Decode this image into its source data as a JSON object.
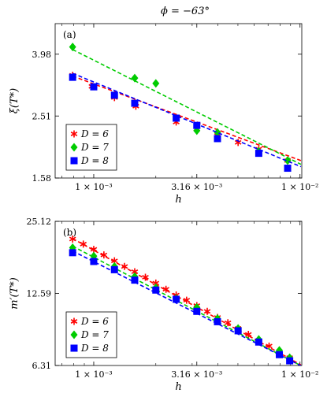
{
  "title": "ϕ = −63°",
  "chart_data": [
    {
      "type": "scatter",
      "panel_label": "(a)",
      "xlabel": "h",
      "ylabel": "ξ(T*)",
      "xscale": "log",
      "yscale": "log",
      "xlim": [
        0.00065,
        0.0102
      ],
      "ylim": [
        1.58,
        5.0
      ],
      "x_ticks": [
        {
          "value": 0.001,
          "label": "1 × 10⁻³"
        },
        {
          "value": 0.00316,
          "label": "3.16 × 10⁻³"
        },
        {
          "value": 0.01,
          "label": "1 × 10⁻²"
        }
      ],
      "y_ticks": [
        {
          "value": 1.58,
          "label": "1.58"
        },
        {
          "value": 2.51,
          "label": "2.51"
        },
        {
          "value": 3.98,
          "label": "3.98"
        }
      ],
      "legend_position": "bottom-left",
      "series": [
        {
          "name": "D = 6",
          "color": "#ff0000",
          "marker": "star",
          "x": [
            0.00079,
            0.00098,
            0.00126,
            0.0016,
            0.00251,
            0.00316,
            0.00398,
            0.00501,
            0.00631,
            0.00871
          ],
          "y": [
            3.4,
            3.13,
            2.88,
            2.7,
            2.4,
            2.28,
            2.17,
            2.06,
            1.96,
            1.8
          ],
          "fit": {
            "x": [
              0.00079,
              0.0101
            ],
            "y": [
              3.38,
              1.8
            ]
          }
        },
        {
          "name": "D = 7",
          "color": "#00cc00",
          "marker": "diamond",
          "x": [
            0.00079,
            0.00158,
            0.002,
            0.00316,
            0.00398,
            0.00631,
            0.00871
          ],
          "y": [
            4.2,
            3.33,
            3.2,
            2.25,
            2.22,
            1.93,
            1.8
          ],
          "fit": {
            "x": [
              0.00079,
              0.0101
            ],
            "y": [
              4.12,
              1.75
            ]
          }
        },
        {
          "name": "D = 8",
          "color": "#0000ff",
          "marker": "square",
          "x": [
            0.00079,
            0.001,
            0.00126,
            0.00158,
            0.00251,
            0.00316,
            0.00398,
            0.00631,
            0.00871
          ],
          "y": [
            3.35,
            3.12,
            2.93,
            2.76,
            2.47,
            2.34,
            2.12,
            1.9,
            1.7
          ],
          "fit": {
            "x": [
              0.00079,
              0.0101
            ],
            "y": [
              3.45,
              1.72
            ]
          }
        }
      ]
    },
    {
      "type": "scatter",
      "panel_label": "(b)",
      "xlabel": "h",
      "ylabel": "m′(T*)",
      "xscale": "log",
      "yscale": "log",
      "xlim": [
        0.00065,
        0.0102
      ],
      "ylim": [
        6.31,
        25.12
      ],
      "x_ticks": [
        {
          "value": 0.001,
          "label": "1 × 10⁻³"
        },
        {
          "value": 0.00316,
          "label": "3.16 × 10⁻³"
        },
        {
          "value": 0.01,
          "label": "1 × 10⁻²"
        }
      ],
      "y_ticks": [
        {
          "value": 6.31,
          "label": "6.31"
        },
        {
          "value": 12.59,
          "label": "12.59"
        },
        {
          "value": 25.12,
          "label": "25.12"
        }
      ],
      "legend_position": "bottom-left",
      "series": [
        {
          "name": "D = 6",
          "color": "#ff0000",
          "marker": "star",
          "x": [
            0.00079,
            0.00089,
            0.001,
            0.00112,
            0.00126,
            0.00141,
            0.00158,
            0.00178,
            0.002,
            0.00224,
            0.00251,
            0.00282,
            0.00316,
            0.00355,
            0.00398,
            0.00447,
            0.00501,
            0.00562,
            0.00631,
            0.00708,
            0.00794,
            0.00891
          ],
          "y": [
            21.2,
            20.2,
            19.2,
            18.2,
            17.2,
            16.3,
            15.5,
            14.7,
            13.9,
            13.1,
            12.4,
            11.8,
            11.2,
            10.6,
            10.0,
            9.5,
            9.0,
            8.5,
            8.0,
            7.6,
            7.2,
            6.8
          ],
          "fit": {
            "x": [
              0.00079,
              0.0101
            ],
            "y": [
              21.3,
              6.35
            ]
          }
        },
        {
          "name": "D = 7",
          "color": "#00cc00",
          "marker": "diamond",
          "x": [
            0.00079,
            0.001,
            0.00126,
            0.00158,
            0.002,
            0.00251,
            0.00316,
            0.00398,
            0.00501,
            0.00631,
            0.00794,
            0.00891
          ],
          "y": [
            19.5,
            18.0,
            16.3,
            14.8,
            13.3,
            12.0,
            11.0,
            9.9,
            9.0,
            8.1,
            7.3,
            6.8
          ],
          "fit": {
            "x": [
              0.00079,
              0.0101
            ],
            "y": [
              19.8,
              6.3
            ]
          }
        },
        {
          "name": "D = 8",
          "color": "#0000ff",
          "marker": "square",
          "x": [
            0.00079,
            0.001,
            0.00126,
            0.00158,
            0.002,
            0.00251,
            0.00316,
            0.00398,
            0.00501,
            0.00631,
            0.00794,
            0.00891
          ],
          "y": [
            18.6,
            17.1,
            15.8,
            14.3,
            13.0,
            11.9,
            10.6,
            9.6,
            8.8,
            7.9,
            7.0,
            6.6
          ],
          "fit": {
            "x": [
              0.00079,
              0.0101
            ],
            "y": [
              18.9,
              6.3
            ]
          }
        }
      ]
    }
  ]
}
